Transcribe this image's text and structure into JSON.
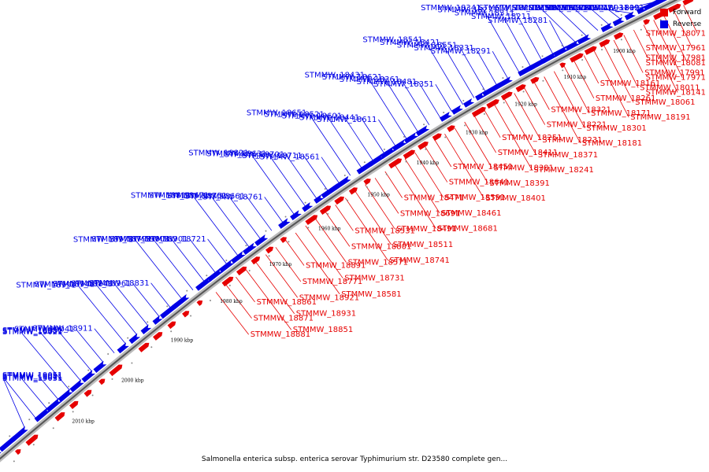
{
  "legend": [
    {
      "label": "Forward",
      "color": "#e60000"
    },
    {
      "label": "Reverse",
      "color": "#0000e6"
    }
  ],
  "colors": {
    "forward": "#e60000",
    "reverse": "#0000e6",
    "backbone": "#999999"
  },
  "caption": "Salmonella enterica subsp. enterica serovar Typhimurium str. D23580 complete gen...",
  "ticks": [
    "1900 kbp",
    "1910 kbp",
    "1920 kbp",
    "1930 kbp",
    "1940 kbp",
    "1950 kbp",
    "1960 kbp",
    "1970 kbp",
    "1980 kbp",
    "1990 kbp",
    "2000 kbp",
    "2010 kbp"
  ],
  "reverse_labels": [
    "STMMW_18121",
    "STMMW_18091",
    "STMMW_18031",
    "STMMW_18111",
    "STMMW_18041",
    "STMMW_18051",
    "STMMW_18101",
    "STMMW_18131",
    "STMMW_18151",
    "STMMW_18201",
    "STMMW_18281",
    "STMMW_18211",
    "STMMW_18311",
    "STMMW_18271",
    "STMMW_18341",
    "STMMW_18291",
    "STMMW_18331",
    "STMMW_18551",
    "STMMW_18421",
    "STMMW_18541",
    "STMMW_18351",
    "STMMW_18481",
    "STMMW_18361",
    "STMMW_18621",
    "STMMW_18431",
    "STMMW_18611",
    "STMMW_18441",
    "STMMW_18601",
    "STMMW_18521",
    "STMMW_18651",
    "STMMW_18561",
    "STMMW_18711",
    "STMMW_18701",
    "STMMW_18631",
    "STMMW_18821",
    "STMMW_18761",
    "STMMW_18661",
    "STMMW_18751",
    "STMMW_18671",
    "STMMW_18811",
    "STMMW_18721",
    "STMMW_18901",
    "STMMW_19001",
    "STMMW_18791",
    "STMMW_18971",
    "STMMW_18831",
    "STMMW_18961",
    "STMMW_18841",
    "STMMW_18941",
    "STMMW_18991",
    "STMMW_18911",
    "STMMW_19041",
    "STMMW_18951",
    "STMMW_18981",
    "STMMW_19021",
    "STMMW_19051",
    "STMMW_19081",
    "STMMW_19011",
    "STMMW_19031"
  ],
  "forward_labels": [
    "STMMW_18071",
    "STMMW_17961",
    "STMMW_18081",
    "STMMW_17971",
    "STMMW_18141",
    "STMMW_17981",
    "STMMW_17991",
    "STMMW_18011",
    "STMMW_18061",
    "STMMW_18191",
    "STMMW_18161",
    "STMMW_18261",
    "STMMW_18171",
    "STMMW_18301",
    "STMMW_18181",
    "STMMW_18321",
    "STMMW_18221",
    "STMMW_18231",
    "STMMW_18371",
    "STMMW_18241",
    "STMMW_18251",
    "STMMW_18411",
    "STMMW_18381",
    "STMMW_18391",
    "STMMW_18401",
    "STMMW_18451",
    "STMMW_18641",
    "STMMW_18591",
    "STMMW_18461",
    "STMMW_18681",
    "STMMW_18471",
    "STMMW_18691",
    "STMMW_18491",
    "STMMW_18511",
    "STMMW_18741",
    "STMMW_18531",
    "STMMW_18801",
    "STMMW_18571",
    "STMMW_18731",
    "STMMW_18581",
    "STMMW_18891",
    "STMMW_18771",
    "STMMW_18921",
    "STMMW_18931",
    "STMMW_18851",
    "STMMW_18861",
    "STMMW_18871",
    "STMMW_18881"
  ]
}
